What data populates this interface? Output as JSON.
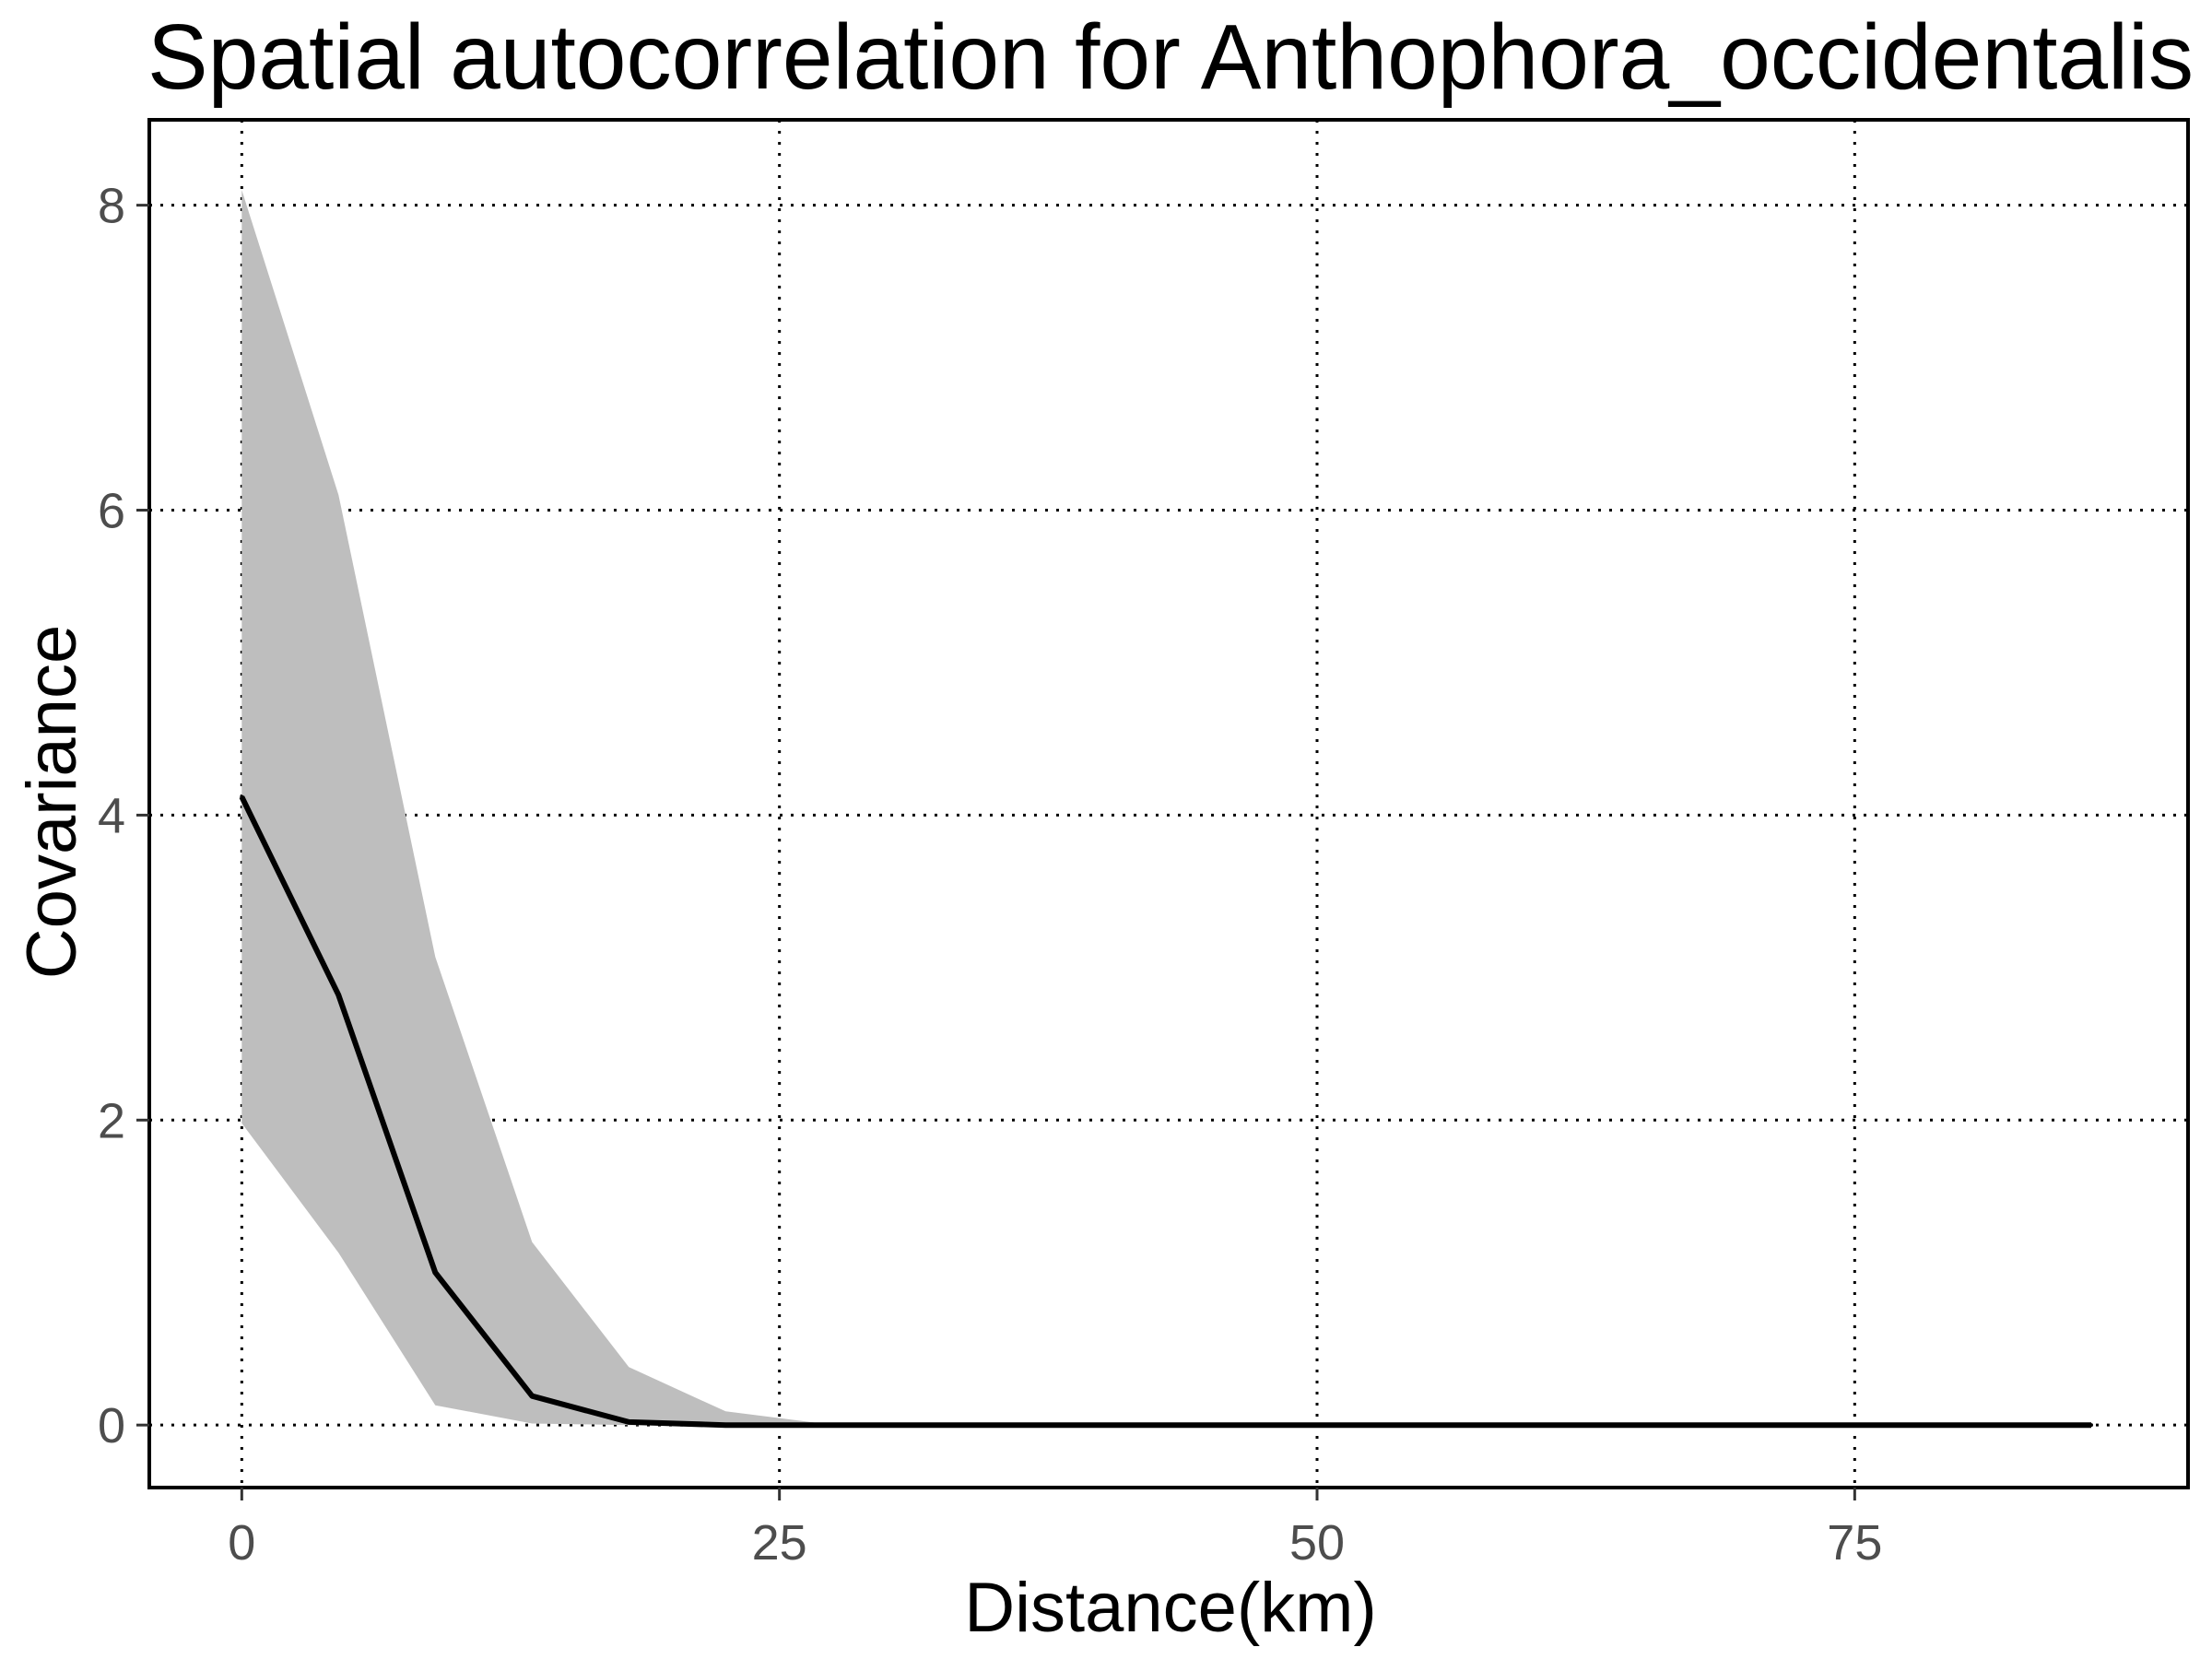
{
  "chart_data": {
    "type": "line",
    "title": "Spatial autocorrelation for Anthophora_occidentalis",
    "xlabel": "Distance(km)",
    "ylabel": "Covariance",
    "xlim": [
      -4.3,
      90.5
    ],
    "ylim": [
      -0.41,
      8.56
    ],
    "xticks": [
      0,
      25,
      50,
      75
    ],
    "xtick_labels": [
      "0",
      "25",
      "50",
      "75"
    ],
    "yticks": [
      0,
      2,
      4,
      6,
      8
    ],
    "ytick_labels": [
      "0",
      "2",
      "4",
      "6",
      "8"
    ],
    "grid": true,
    "grid_style": "dotted",
    "legend": "none",
    "colors": {
      "line": "#000000",
      "band": "#bebebe",
      "grid": "#000000",
      "frame": "#000000"
    },
    "series": [
      {
        "x": [
          0,
          4.5,
          9,
          13.5,
          18,
          22.5,
          27,
          31.5,
          36,
          40.5,
          45,
          49.5,
          54,
          58.5,
          63,
          67.5,
          72,
          76.5,
          81,
          86
        ],
        "values": [
          4.12,
          2.82,
          1.0,
          0.19,
          0.02,
          0.0,
          0.0,
          0.0,
          0.0,
          0.0,
          0.0,
          0.0,
          0.0,
          0.0,
          0.0,
          0.0,
          0.0,
          0.0,
          0.0,
          0.0
        ],
        "upper": [
          8.1,
          6.1,
          3.07,
          1.2,
          0.38,
          0.09,
          0.01,
          0.0,
          0.0,
          0.0,
          0.0,
          0.0,
          0.0,
          0.0,
          0.0,
          0.0,
          0.0,
          0.0,
          0.0,
          0.0
        ],
        "lower": [
          1.98,
          1.13,
          0.13,
          0.01,
          0.0,
          0.0,
          0.0,
          0.0,
          0.0,
          0.0,
          0.0,
          0.0,
          0.0,
          0.0,
          0.0,
          0.0,
          0.0,
          0.0,
          0.0,
          0.0
        ]
      }
    ]
  }
}
